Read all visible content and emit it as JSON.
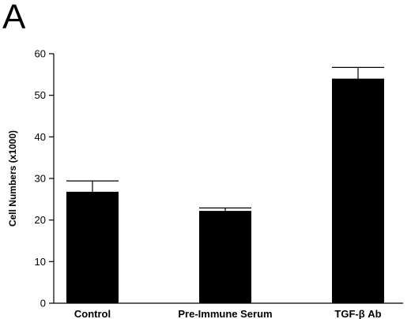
{
  "panel_label": "A",
  "chart_data": {
    "type": "bar",
    "categories": [
      "Control",
      "Pre-Immune Serum",
      "TGF-β Ab"
    ],
    "values": [
      26.8,
      22.2,
      54.0
    ],
    "errors": [
      2.6,
      0.7,
      2.7
    ],
    "title": "",
    "xlabel": "",
    "ylabel": "Cell Numbers (x1000)",
    "ylim": [
      0,
      60
    ],
    "yticks": [
      0,
      10,
      20,
      30,
      40,
      50,
      60
    ],
    "grid": false,
    "legend": "none",
    "bar_color": "#000000"
  }
}
